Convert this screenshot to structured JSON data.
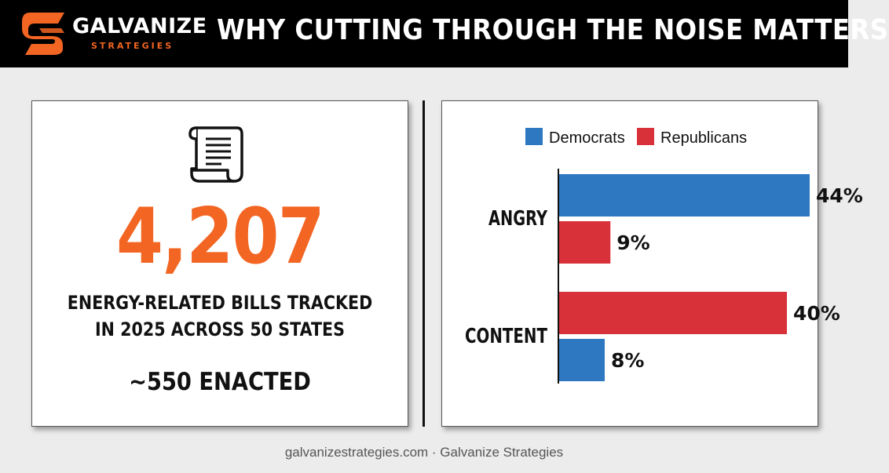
{
  "header": {
    "brand_name": "GALVANIZE",
    "brand_sub": "STRATEGIES",
    "title": "WHY CUTTING THROUGH THE NOISE MATTERS"
  },
  "stat_card": {
    "icon": "scroll-icon",
    "number": "4,207",
    "description_line1": "ENERGY-RELATED BILLS TRACKED",
    "description_line2": "IN 2025 ACROSS 50 STATES",
    "enacted": "~550 ENACTED"
  },
  "colors": {
    "accent": "#f26522",
    "democrats": "#2e78c2",
    "republicans": "#d8313a"
  },
  "chart_data": {
    "type": "bar",
    "orientation": "horizontal",
    "legend_position": "top",
    "categories": [
      "ANGRY",
      "CONTENT"
    ],
    "groups": [
      {
        "category": "ANGRY",
        "bars": [
          {
            "series": "Democrats",
            "value": 44,
            "label": "44%"
          },
          {
            "series": "Republicans",
            "value": 9,
            "label": "9%"
          }
        ]
      },
      {
        "category": "CONTENT",
        "bars": [
          {
            "series": "Republicans",
            "value": 40,
            "label": "40%"
          },
          {
            "series": "Democrats",
            "value": 8,
            "label": "8%"
          }
        ]
      }
    ],
    "series": [
      {
        "name": "Democrats",
        "values": [
          44,
          8
        ]
      },
      {
        "name": "Republicans",
        "values": [
          9,
          40
        ]
      }
    ],
    "xlim": [
      0,
      50
    ],
    "grid": false
  },
  "footer": {
    "text": "galvanizestrategies.com · Galvanize Strategies"
  }
}
